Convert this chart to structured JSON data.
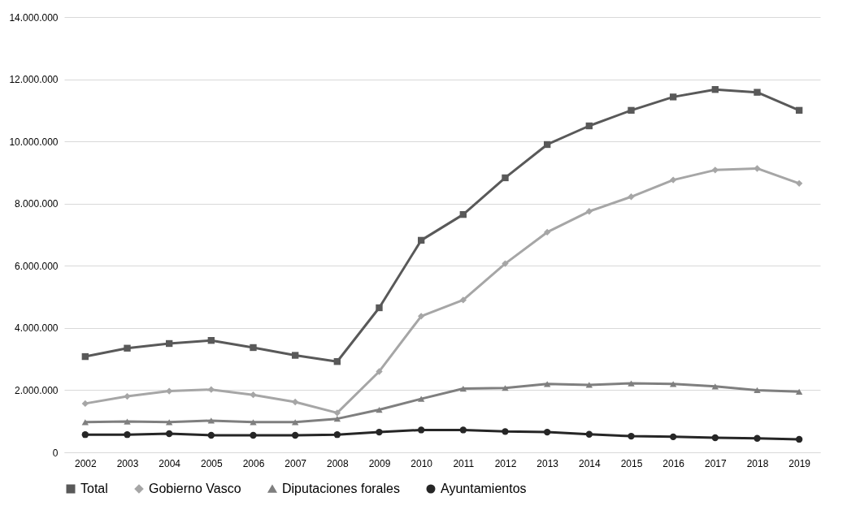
{
  "chart_data": {
    "type": "line",
    "categories": [
      "2002",
      "2003",
      "2004",
      "2005",
      "2006",
      "2007",
      "2008",
      "2009",
      "2010",
      "2011",
      "2012",
      "2013",
      "2014",
      "2015",
      "2016",
      "2017",
      "2018",
      "2019"
    ],
    "series": [
      {
        "name": "Total",
        "color": "#595959",
        "marker": "square",
        "values": [
          3080000,
          3350000,
          3500000,
          3600000,
          3370000,
          3120000,
          2920000,
          4650000,
          6820000,
          7650000,
          8830000,
          9900000,
          10500000,
          11000000,
          11430000,
          11670000,
          11580000,
          11000000
        ]
      },
      {
        "name": "Gobierno Vasco",
        "color": "#a6a6a6",
        "marker": "diamond",
        "values": [
          1570000,
          1800000,
          1970000,
          2020000,
          1850000,
          1620000,
          1270000,
          2600000,
          4380000,
          4900000,
          6070000,
          7080000,
          7750000,
          8220000,
          8760000,
          9080000,
          9130000,
          8650000
        ]
      },
      {
        "name": "Diputaciones forales",
        "color": "#7f7f7f",
        "marker": "triangle",
        "values": [
          970000,
          990000,
          970000,
          1020000,
          970000,
          970000,
          1080000,
          1370000,
          1720000,
          2050000,
          2070000,
          2200000,
          2170000,
          2220000,
          2200000,
          2120000,
          2000000,
          1950000
        ]
      },
      {
        "name": "Ayuntamientos",
        "color": "#262626",
        "marker": "circle",
        "values": [
          570000,
          570000,
          600000,
          550000,
          550000,
          550000,
          570000,
          650000,
          720000,
          720000,
          670000,
          650000,
          580000,
          520000,
          500000,
          470000,
          450000,
          420000
        ]
      }
    ],
    "ylim": [
      0,
      14000000
    ],
    "yticks": [
      0,
      {
        "value": 2000000,
        "label": "2.000.000"
      },
      {
        "value": 4000000,
        "label": "4.000.000"
      },
      {
        "value": 6000000,
        "label": "6.000.000"
      },
      {
        "value": 8000000,
        "label": "8.000.000"
      },
      {
        "value": 10000000,
        "label": "10.000.000"
      },
      {
        "value": 12000000,
        "label": "12.000.000"
      },
      {
        "value": 14000000,
        "label": "14.000.000"
      }
    ],
    "grid": "y",
    "legend": "bottom",
    "line_style": "solid"
  }
}
